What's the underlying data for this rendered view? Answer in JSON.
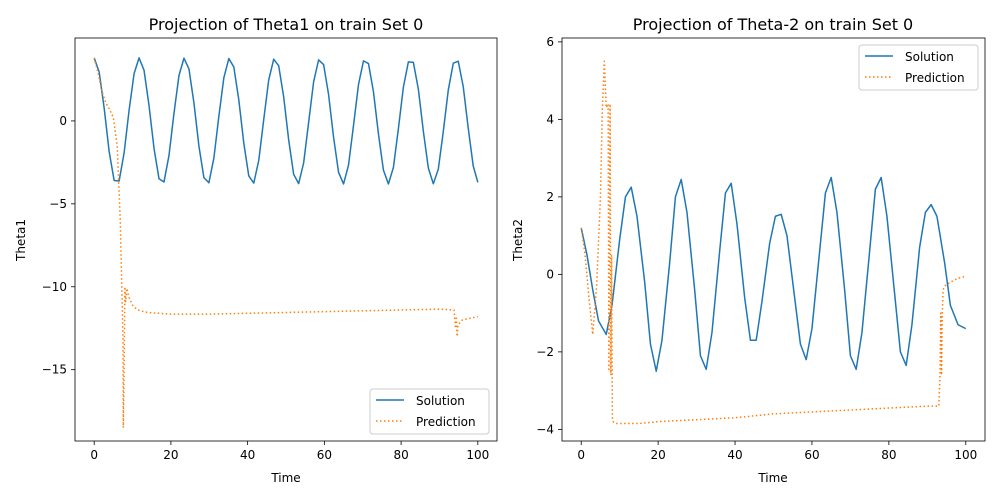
{
  "chart_data": [
    {
      "type": "line",
      "title": "Projection of Theta1 on train Set 0",
      "xlabel": "Time",
      "ylabel": "Theta1",
      "xlim": [
        -5,
        105
      ],
      "ylim": [
        -19.3,
        5.0
      ],
      "xticks": [
        0,
        20,
        40,
        60,
        80,
        100
      ],
      "yticks": [
        0,
        -5,
        -10,
        -15
      ],
      "legend_position": "lower-right",
      "grid": false,
      "series": [
        {
          "name": "Solution",
          "color": "#1f77b4",
          "style": "solid",
          "x": [
            0,
            1.3,
            2.6,
            3.9,
            5.2,
            6.5,
            7.8,
            9.1,
            10.4,
            11.7,
            13.0,
            14.3,
            15.6,
            16.9,
            18.2,
            19.5,
            20.8,
            22.1,
            23.4,
            24.7,
            26.0,
            27.3,
            28.6,
            29.9,
            31.2,
            32.5,
            33.8,
            35.1,
            36.4,
            37.7,
            39.0,
            40.3,
            41.6,
            42.9,
            44.2,
            45.5,
            46.8,
            48.1,
            49.4,
            50.7,
            52.0,
            53.3,
            54.6,
            55.9,
            57.2,
            58.5,
            59.8,
            61.1,
            62.4,
            63.7,
            65.0,
            66.3,
            67.6,
            68.9,
            70.2,
            71.5,
            72.8,
            74.1,
            75.4,
            76.7,
            78.0,
            79.3,
            80.6,
            81.9,
            83.2,
            84.5,
            85.8,
            87.1,
            88.4,
            89.7,
            91.0,
            92.3,
            93.6,
            94.9,
            96.2,
            97.5,
            98.8,
            100
          ],
          "y": [
            3.8,
            2.95,
            0.78,
            -1.84,
            -3.59,
            -3.62,
            -1.93,
            0.64,
            2.85,
            3.8,
            3.05,
            0.92,
            -1.66,
            -3.49,
            -3.68,
            -2.08,
            0.46,
            2.74,
            3.78,
            3.14,
            1.09,
            -1.51,
            -3.42,
            -3.73,
            -2.24,
            0.28,
            2.61,
            3.76,
            3.25,
            1.27,
            -1.34,
            -3.32,
            -3.75,
            -2.38,
            0.09,
            2.48,
            3.72,
            3.32,
            1.44,
            -1.15,
            -3.22,
            -3.78,
            -2.53,
            -0.09,
            2.36,
            3.68,
            3.4,
            1.59,
            -0.98,
            -3.1,
            -3.8,
            -2.66,
            -0.27,
            2.2,
            3.62,
            3.46,
            1.75,
            -0.79,
            -2.97,
            -3.8,
            -2.8,
            -0.46,
            2.04,
            3.56,
            3.53,
            1.92,
            -0.62,
            -2.84,
            -3.79,
            -2.91,
            -0.64,
            1.86,
            3.48,
            3.6,
            2.07,
            -0.43,
            -2.71,
            -3.7
          ]
        },
        {
          "name": "Prediction",
          "color": "#ff7f0e",
          "style": "dotted",
          "x": [
            0,
            1,
            2,
            3,
            4,
            5,
            6,
            6.8,
            7.5,
            7.6,
            7.8,
            8.0,
            8.2,
            8.5,
            9.0,
            10,
            11,
            12,
            14,
            17,
            20,
            25,
            30,
            40,
            50,
            60,
            70,
            80,
            90,
            93.8,
            94.2,
            94.4,
            94.6,
            94.8,
            95.2,
            96,
            98,
            100
          ],
          "y": [
            3.8,
            2.9,
            1.8,
            1.1,
            0.7,
            0.2,
            -1.5,
            -6.0,
            -13.0,
            -18.5,
            -15.0,
            -10.0,
            -10.9,
            -10.1,
            -10.6,
            -11.1,
            -11.35,
            -11.45,
            -11.55,
            -11.6,
            -11.65,
            -11.65,
            -11.65,
            -11.6,
            -11.55,
            -11.5,
            -11.45,
            -11.4,
            -11.35,
            -11.4,
            -12.5,
            -11.9,
            -13.0,
            -12.4,
            -12.2,
            -12.0,
            -11.9,
            -11.8
          ]
        }
      ]
    },
    {
      "type": "line",
      "title": "Projection of Theta-2 on train Set 0",
      "xlabel": "Time",
      "ylabel": "Theta2",
      "xlim": [
        -5,
        105
      ],
      "ylim": [
        -4.3,
        6.1
      ],
      "xticks": [
        0,
        20,
        40,
        60,
        80,
        100
      ],
      "yticks": [
        -4,
        -2,
        0,
        2,
        4,
        6
      ],
      "legend_position": "upper-right",
      "grid": false,
      "series": [
        {
          "name": "Solution",
          "color": "#1f77b4",
          "style": "solid",
          "x": [
            0,
            1.5,
            3,
            4.5,
            6.5,
            8,
            10,
            11.5,
            13,
            14.5,
            16.5,
            18,
            19.5,
            21,
            23,
            24.5,
            26,
            27.5,
            29.5,
            31,
            32.5,
            34,
            36,
            37.5,
            39,
            40.5,
            42.5,
            44,
            45.5,
            47,
            49,
            50.5,
            52,
            53.5,
            55.5,
            57,
            58.5,
            60,
            62,
            63.5,
            65,
            66.5,
            68.5,
            70,
            71.5,
            73,
            75,
            76.5,
            78,
            79.5,
            81.5,
            83,
            84.5,
            86,
            88,
            89.5,
            91,
            92.5,
            94.5,
            96,
            98,
            100
          ],
          "y": [
            1.2,
            0.5,
            -0.4,
            -1.2,
            -1.55,
            -0.8,
            0.9,
            2.0,
            2.25,
            1.5,
            -0.2,
            -1.8,
            -2.5,
            -1.7,
            0.3,
            2.0,
            2.45,
            1.6,
            -0.4,
            -2.1,
            -2.45,
            -1.5,
            0.6,
            2.1,
            2.35,
            1.3,
            -0.6,
            -1.7,
            -1.7,
            -0.7,
            0.8,
            1.5,
            1.55,
            1.0,
            -0.6,
            -1.8,
            -2.2,
            -1.4,
            0.6,
            2.1,
            2.5,
            1.6,
            -0.4,
            -2.1,
            -2.45,
            -1.5,
            0.6,
            2.2,
            2.5,
            1.5,
            -0.5,
            -2.0,
            -2.35,
            -1.3,
            0.7,
            1.6,
            1.8,
            1.5,
            0.3,
            -0.8,
            -1.3,
            -1.4
          ]
        },
        {
          "name": "Prediction",
          "color": "#ff7f0e",
          "style": "dotted",
          "x": [
            0,
            1,
            2,
            3,
            4,
            5,
            5.5,
            6,
            6.5,
            7.0,
            7.2,
            7.5,
            7.7,
            7.9,
            8.1,
            8.3,
            9,
            10,
            12,
            15,
            20,
            30,
            40,
            50,
            60,
            70,
            80,
            90,
            93,
            93.3,
            93.5,
            93.7,
            93.9,
            94.1,
            94.5,
            96,
            98,
            100
          ],
          "y": [
            1.2,
            0.5,
            -0.6,
            -1.55,
            -0.3,
            2.0,
            4.3,
            5.5,
            4.3,
            4.4,
            -2.5,
            4.4,
            -2.6,
            0.5,
            -3.7,
            -3.8,
            -3.85,
            -3.85,
            -3.85,
            -3.85,
            -3.8,
            -3.75,
            -3.7,
            -3.6,
            -3.55,
            -3.5,
            -3.45,
            -3.4,
            -3.4,
            -2.6,
            -1.0,
            -2.6,
            -1.0,
            -0.4,
            -0.3,
            -0.2,
            -0.1,
            -0.05
          ]
        }
      ]
    }
  ]
}
